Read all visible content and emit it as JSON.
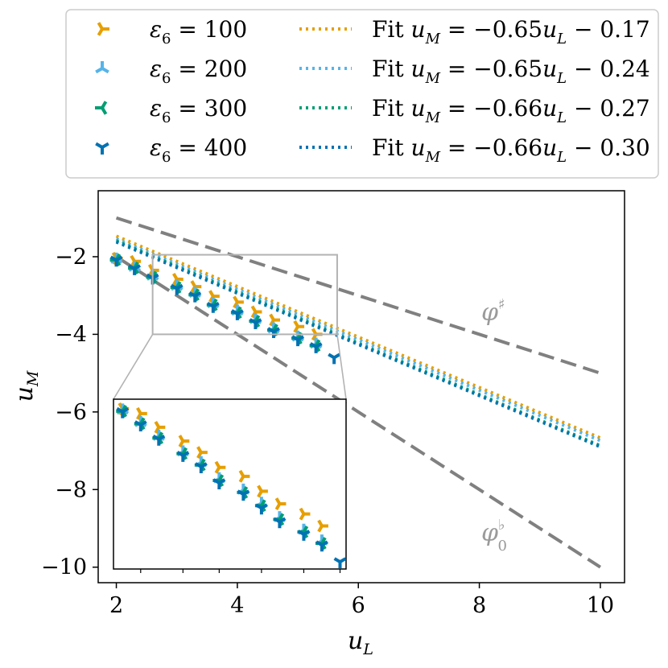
{
  "chart_data": {
    "type": "scatter",
    "xlabel": "u",
    "xlabel_sub": "L",
    "ylabel": "u",
    "ylabel_sub": "M",
    "xlim": [
      1.7,
      10.4
    ],
    "ylim": [
      -10.4,
      -0.3
    ],
    "xticks": [
      2,
      4,
      6,
      8,
      10
    ],
    "yticks": [
      -2,
      -4,
      -6,
      -8,
      -10
    ],
    "xtick_labels": [
      "2",
      "4",
      "6",
      "8",
      "10"
    ],
    "ytick_labels": [
      "−2",
      "−4",
      "−6",
      "−8",
      "−10"
    ],
    "grid": false,
    "legend_position": "top (above axes)",
    "series": [
      {
        "name": "ε₆ = 100",
        "label_prefix": "ε",
        "label_sub": "6",
        "label_value": " = 100",
        "color": "#E69F00",
        "marker": "tri_right",
        "x": [
          2.0,
          2.3,
          2.6,
          3.0,
          3.3,
          3.6,
          4.0,
          4.3,
          4.6,
          5.0,
          5.3
        ],
        "y": [
          -2.04,
          -2.12,
          -2.35,
          -2.58,
          -2.77,
          -3.02,
          -3.17,
          -3.42,
          -3.63,
          -3.8,
          -4.0
        ]
      },
      {
        "name": "ε₆ = 200",
        "label_prefix": "ε",
        "label_sub": "6",
        "label_value": " = 200",
        "color": "#56B4E9",
        "marker": "tri_up",
        "x": [
          2.0,
          2.3,
          2.6,
          3.0,
          3.3,
          3.6,
          4.0,
          4.3,
          4.6,
          5.0,
          5.3
        ],
        "y": [
          -2.06,
          -2.27,
          -2.5,
          -2.76,
          -2.94,
          -3.21,
          -3.4,
          -3.62,
          -3.86,
          -4.07,
          -4.25
        ]
      },
      {
        "name": "ε₆ = 300",
        "label_prefix": "ε",
        "label_sub": "6",
        "label_value": " = 300",
        "color": "#009E73",
        "marker": "tri_left",
        "x": [
          2.0,
          2.3,
          2.6,
          3.0,
          3.3,
          3.6,
          4.0,
          4.3,
          4.6,
          5.0,
          5.3
        ],
        "y": [
          -2.08,
          -2.29,
          -2.53,
          -2.79,
          -2.98,
          -3.24,
          -3.44,
          -3.66,
          -3.89,
          -4.1,
          -4.29
        ]
      },
      {
        "name": "ε₆ = 400",
        "label_prefix": "ε",
        "label_sub": "6",
        "label_value": " = 400",
        "color": "#0072B2",
        "marker": "tri_down",
        "x": [
          2.0,
          2.3,
          2.6,
          3.0,
          3.3,
          3.6,
          4.0,
          4.3,
          4.6,
          5.0,
          5.3,
          5.6
        ],
        "y": [
          -2.09,
          -2.31,
          -2.55,
          -2.82,
          -3.01,
          -3.28,
          -3.47,
          -3.7,
          -3.93,
          -4.14,
          -4.32,
          -4.6
        ]
      }
    ],
    "fits": [
      {
        "label": "Fit u_M = −0.65u_L − 0.17",
        "label_pre": "Fit ",
        "label_mid": " = −0.65",
        "label_post": " − 0.17",
        "slope": -0.65,
        "intercept": -0.17,
        "color": "#E69F00"
      },
      {
        "label": "Fit u_M = −0.65u_L − 0.24",
        "label_pre": "Fit ",
        "label_mid": " = −0.65",
        "label_post": " − 0.24",
        "slope": -0.65,
        "intercept": -0.24,
        "color": "#56B4E9"
      },
      {
        "label": "Fit u_M = −0.66u_L − 0.27",
        "label_pre": "Fit ",
        "label_mid": " = −0.66",
        "label_post": " − 0.27",
        "slope": -0.66,
        "intercept": -0.27,
        "color": "#009E73"
      },
      {
        "label": "Fit u_M = −0.66u_L − 0.30",
        "label_pre": "Fit ",
        "label_mid": " = −0.66",
        "label_post": " − 0.30",
        "slope": -0.66,
        "intercept": -0.3,
        "color": "#0072B2"
      }
    ],
    "fit_x_range": [
      2,
      10
    ],
    "reference_lines": [
      {
        "label": "φ",
        "sup": "♯",
        "sub": "",
        "x": [
          2,
          10
        ],
        "y": [
          -1.0,
          -5.0
        ],
        "color": "#808080"
      },
      {
        "label": "φ",
        "sup": "♭",
        "sub": "0",
        "x": [
          2,
          10
        ],
        "y": [
          -2.0,
          -10.0
        ],
        "color": "#808080"
      }
    ],
    "inset": {
      "xlim": [
        1.85,
        5.7
      ],
      "ylim": [
        -4.72,
        -1.88
      ],
      "zoom_rect_x": [
        2.6,
        5.65
      ],
      "zoom_rect_y": [
        -4.0,
        -1.95
      ],
      "xticks": [
        2.3,
        3.0,
        3.6,
        4.3,
        5.0,
        5.6
      ]
    }
  }
}
